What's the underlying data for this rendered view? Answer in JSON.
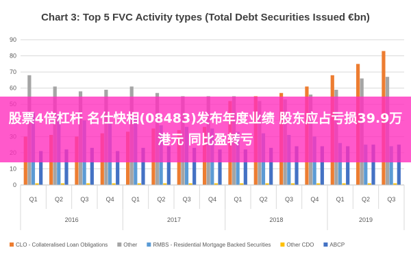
{
  "banner": {
    "headline": "股票4倍杠杆 名仕快相(08483)发布年度业绩 股东应占亏损39.9万港元 同比盈转亏"
  },
  "chart_data": {
    "type": "bar",
    "title": "Chart 3: Top 5 FVC Activity types (Total Debt Securities Issued €bn)",
    "xlabel": "",
    "ylabel": "",
    "ylim": [
      0,
      90
    ],
    "yticks": [
      0,
      10,
      20,
      30,
      40,
      50,
      60,
      70,
      80,
      90
    ],
    "grid": true,
    "legend_position": "bottom",
    "categories": [
      "Q1",
      "Q2",
      "Q3",
      "Q4",
      "Q1",
      "Q2",
      "Q3",
      "Q4",
      "Q1",
      "Q2",
      "Q3",
      "Q4",
      "Q1",
      "Q2",
      "Q3"
    ],
    "groups": [
      {
        "label": "2016",
        "count": 4
      },
      {
        "label": "2017",
        "count": 4
      },
      {
        "label": "2018",
        "count": 4
      },
      {
        "label": "2019",
        "count": 3
      }
    ],
    "series": [
      {
        "name": "CLO - Collateralised Loan Obligations",
        "color": "#ed7d31",
        "values": [
          30,
          31,
          30,
          32,
          33,
          35,
          34,
          36,
          52,
          55,
          57,
          61,
          68,
          75,
          83
        ]
      },
      {
        "name": "Other",
        "color": "#a5a5a5",
        "values": [
          68,
          61,
          58,
          59,
          61,
          57,
          55,
          55,
          55,
          52,
          53,
          56,
          59,
          66,
          67
        ]
      },
      {
        "name": "RMBS - Residential Mortgage Backed Securities",
        "color": "#5b9bd5",
        "values": [
          45,
          44,
          40,
          38,
          42,
          37,
          36,
          35,
          33,
          32,
          31,
          30,
          26,
          25,
          24
        ]
      },
      {
        "name": "Other CDO",
        "color": "#ffc000",
        "values": [
          1,
          1,
          1,
          1,
          1,
          1,
          1,
          1,
          1,
          1,
          1,
          1,
          1,
          1,
          1
        ]
      },
      {
        "name": "ABCP",
        "color": "#4472c4",
        "values": [
          21,
          22,
          23,
          21,
          23,
          24,
          23,
          22,
          22,
          23,
          24,
          24,
          24,
          25,
          25
        ]
      }
    ]
  }
}
